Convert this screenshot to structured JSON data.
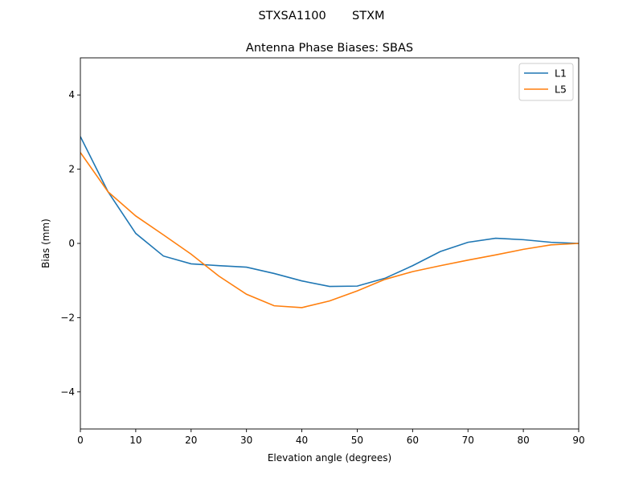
{
  "chart_data": {
    "type": "line",
    "suptitle": "STXSA1100       STXM",
    "title": "Antenna Phase Biases: SBAS",
    "xlabel": "Elevation angle (degrees)",
    "ylabel": "Bias (mm)",
    "xlim": [
      0,
      90
    ],
    "ylim": [
      -5,
      5
    ],
    "xticks": [
      0,
      10,
      20,
      30,
      40,
      50,
      60,
      70,
      80,
      90
    ],
    "yticks": [
      -4,
      -2,
      0,
      2,
      4
    ],
    "ytick_labels": [
      "−4",
      "−2",
      "0",
      "2",
      "4"
    ],
    "grid": false,
    "legend_position": "top-right",
    "x": [
      0,
      5,
      10,
      15,
      20,
      25,
      30,
      35,
      40,
      45,
      50,
      55,
      60,
      65,
      70,
      75,
      80,
      85,
      90
    ],
    "series": [
      {
        "name": "L1",
        "color": "#1f77b4",
        "values": [
          2.88,
          1.39,
          0.27,
          -0.34,
          -0.55,
          -0.6,
          -0.64,
          -0.81,
          -1.01,
          -1.16,
          -1.15,
          -0.94,
          -0.6,
          -0.22,
          0.03,
          0.14,
          0.1,
          0.03,
          0.0
        ]
      },
      {
        "name": "L5",
        "color": "#ff7f0e",
        "values": [
          2.45,
          1.39,
          0.74,
          0.23,
          -0.29,
          -0.88,
          -1.37,
          -1.68,
          -1.73,
          -1.55,
          -1.28,
          -0.97,
          -0.76,
          -0.6,
          -0.45,
          -0.31,
          -0.16,
          -0.04,
          0.0
        ]
      }
    ]
  }
}
